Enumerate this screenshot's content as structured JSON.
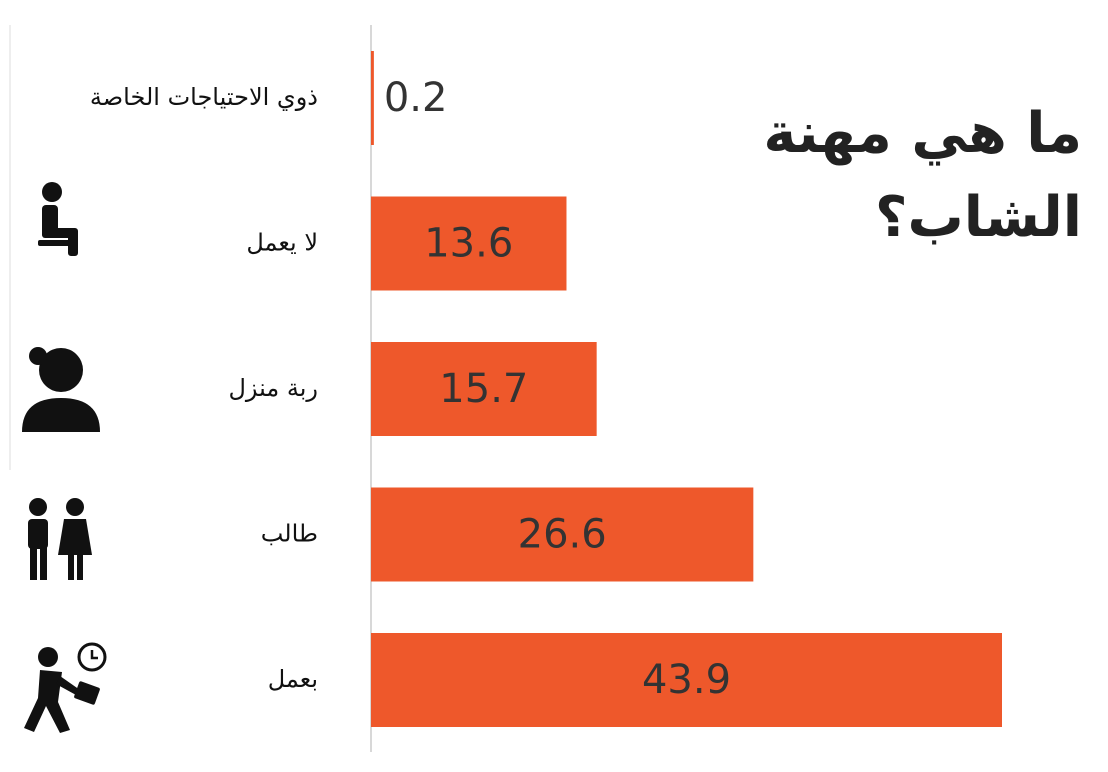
{
  "chart_data": {
    "type": "bar",
    "orientation": "horizontal",
    "title": "ما هي مهنة الشاب؟",
    "categories": [
      "ذوي الاحتياجات الخاصة",
      "لا يعمل",
      "ربة منزل",
      "طالب",
      "بعمل"
    ],
    "values": [
      0.2,
      13.6,
      15.7,
      26.6,
      43.9
    ],
    "color": "#ee582b"
  }
}
